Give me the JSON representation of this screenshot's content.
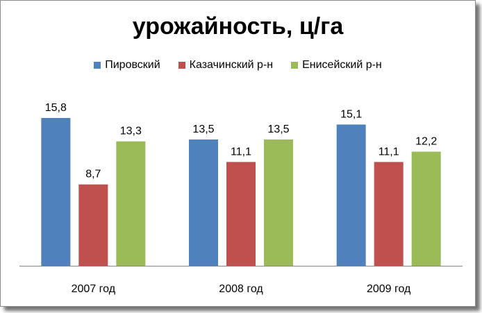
{
  "chart_data": {
    "type": "bar",
    "title": "урожайность, ц/га",
    "categories": [
      "2007 год",
      "2008 год",
      "2009 год"
    ],
    "series": [
      {
        "name": "Пировский",
        "color": "#4F81BD",
        "values": [
          15.8,
          13.5,
          15.1
        ],
        "labels": [
          "15,8",
          "13,5",
          "15,1"
        ]
      },
      {
        "name": "Казачинский р-н",
        "color": "#C0504D",
        "values": [
          8.7,
          11.1,
          11.1
        ],
        "labels": [
          "8,7",
          "11,1",
          "11,1"
        ]
      },
      {
        "name": "Енисейский р-н",
        "color": "#9BBB59",
        "values": [
          13.3,
          13.5,
          12.2
        ],
        "labels": [
          "13,3",
          "13,5",
          "12,2"
        ]
      }
    ],
    "ylim": [
      0,
      15.8
    ],
    "legend_position": "top",
    "grid": false,
    "xlabel": "",
    "ylabel": ""
  }
}
